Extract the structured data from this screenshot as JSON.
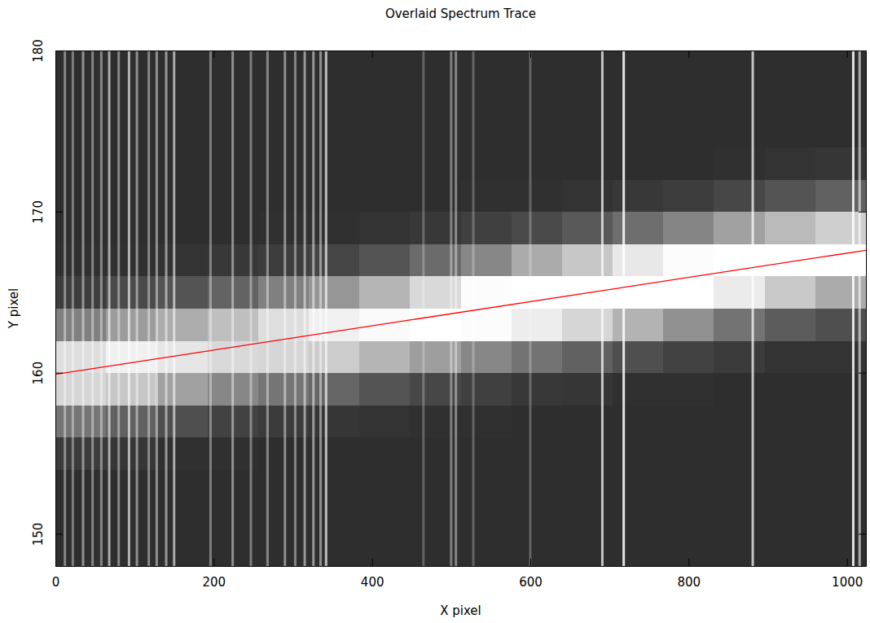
{
  "chart_data": {
    "type": "heatmap",
    "title": "Overlaid Spectrum Trace",
    "x_label": "X pixel",
    "y_label": "Y pixel",
    "xlim": [
      0,
      1024
    ],
    "ylim": [
      148,
      180
    ],
    "xticks": [
      0,
      200,
      400,
      600,
      800,
      1000
    ],
    "yticks": [
      150,
      160,
      170,
      180
    ],
    "x_edges": [
      0,
      64,
      128,
      192,
      256,
      320,
      384,
      448,
      512,
      576,
      640,
      704,
      768,
      832,
      896,
      960,
      1024
    ],
    "y_edges": [
      148,
      150,
      152,
      154,
      156,
      158,
      160,
      162,
      164,
      166,
      168,
      170,
      172,
      174,
      176,
      178,
      180
    ],
    "value_range": [
      0,
      1
    ],
    "cells": [
      [
        0.18,
        0.18,
        0.18,
        0.18,
        0.18,
        0.18,
        0.18,
        0.18,
        0.18,
        0.18,
        0.18,
        0.18,
        0.18,
        0.18,
        0.18,
        0.18
      ],
      [
        0.18,
        0.18,
        0.18,
        0.18,
        0.18,
        0.18,
        0.18,
        0.18,
        0.18,
        0.18,
        0.18,
        0.18,
        0.18,
        0.18,
        0.18,
        0.18
      ],
      [
        0.18,
        0.18,
        0.18,
        0.18,
        0.18,
        0.18,
        0.18,
        0.18,
        0.18,
        0.18,
        0.18,
        0.18,
        0.18,
        0.18,
        0.18,
        0.18
      ],
      [
        0.23,
        0.21,
        0.19,
        0.19,
        0.18,
        0.18,
        0.18,
        0.18,
        0.18,
        0.18,
        0.18,
        0.18,
        0.18,
        0.18,
        0.18,
        0.18
      ],
      [
        0.46,
        0.38,
        0.31,
        0.26,
        0.23,
        0.21,
        0.2,
        0.19,
        0.19,
        0.18,
        0.18,
        0.18,
        0.18,
        0.18,
        0.18,
        0.18
      ],
      [
        0.84,
        0.78,
        0.63,
        0.53,
        0.46,
        0.4,
        0.33,
        0.28,
        0.25,
        0.22,
        0.21,
        0.19,
        0.19,
        0.18,
        0.18,
        0.18
      ],
      [
        0.87,
        0.94,
        0.9,
        0.85,
        0.84,
        0.8,
        0.71,
        0.62,
        0.53,
        0.45,
        0.38,
        0.31,
        0.26,
        0.23,
        0.2,
        0.2
      ],
      [
        0.5,
        0.61,
        0.68,
        0.75,
        0.87,
        0.94,
        0.98,
        1.0,
        0.99,
        0.93,
        0.84,
        0.7,
        0.57,
        0.45,
        0.36,
        0.31
      ],
      [
        0.24,
        0.29,
        0.33,
        0.39,
        0.5,
        0.59,
        0.71,
        0.85,
        0.99,
        1.0,
        1.0,
        1.0,
        1.0,
        0.92,
        0.79,
        0.67
      ],
      [
        0.19,
        0.19,
        0.2,
        0.22,
        0.24,
        0.27,
        0.33,
        0.42,
        0.53,
        0.67,
        0.78,
        0.91,
        0.99,
        1.0,
        1.0,
        1.0
      ],
      [
        0.18,
        0.18,
        0.18,
        0.18,
        0.19,
        0.19,
        0.2,
        0.22,
        0.25,
        0.29,
        0.35,
        0.43,
        0.52,
        0.63,
        0.73,
        0.81
      ],
      [
        0.18,
        0.18,
        0.18,
        0.18,
        0.18,
        0.18,
        0.18,
        0.18,
        0.19,
        0.19,
        0.2,
        0.22,
        0.24,
        0.28,
        0.33,
        0.38
      ],
      [
        0.18,
        0.18,
        0.18,
        0.18,
        0.18,
        0.18,
        0.18,
        0.18,
        0.18,
        0.18,
        0.18,
        0.18,
        0.18,
        0.19,
        0.2,
        0.21
      ],
      [
        0.18,
        0.18,
        0.18,
        0.18,
        0.18,
        0.18,
        0.18,
        0.18,
        0.18,
        0.18,
        0.18,
        0.18,
        0.18,
        0.18,
        0.18,
        0.18
      ],
      [
        0.18,
        0.18,
        0.18,
        0.18,
        0.18,
        0.18,
        0.18,
        0.18,
        0.18,
        0.18,
        0.18,
        0.18,
        0.18,
        0.18,
        0.18,
        0.18
      ],
      [
        0.18,
        0.18,
        0.18,
        0.18,
        0.18,
        0.18,
        0.18,
        0.18,
        0.18,
        0.18,
        0.18,
        0.18,
        0.18,
        0.18,
        0.18,
        0.18
      ]
    ],
    "emission_lines": {
      "x": [
        12,
        22,
        35,
        47,
        58,
        68,
        80,
        93,
        103,
        118,
        128,
        140,
        150,
        196,
        224,
        247,
        268,
        290,
        303,
        315,
        326,
        335,
        342,
        465,
        500,
        506,
        528,
        600,
        691,
        718,
        881,
        1008,
        1016
      ],
      "values": [
        0.5,
        0.45,
        0.55,
        0.5,
        0.5,
        0.7,
        0.5,
        0.75,
        0.55,
        0.5,
        0.55,
        0.6,
        0.7,
        0.45,
        0.55,
        0.45,
        0.5,
        0.55,
        0.5,
        0.6,
        0.6,
        0.55,
        0.8,
        0.3,
        0.45,
        0.5,
        0.3,
        0.3,
        0.85,
        1.0,
        0.85,
        1.0,
        0.7
      ]
    },
    "series": [
      {
        "type": "line",
        "color": "#ff0000",
        "x": [
          0,
          1024
        ],
        "values": [
          159.9,
          167.6
        ]
      }
    ]
  }
}
